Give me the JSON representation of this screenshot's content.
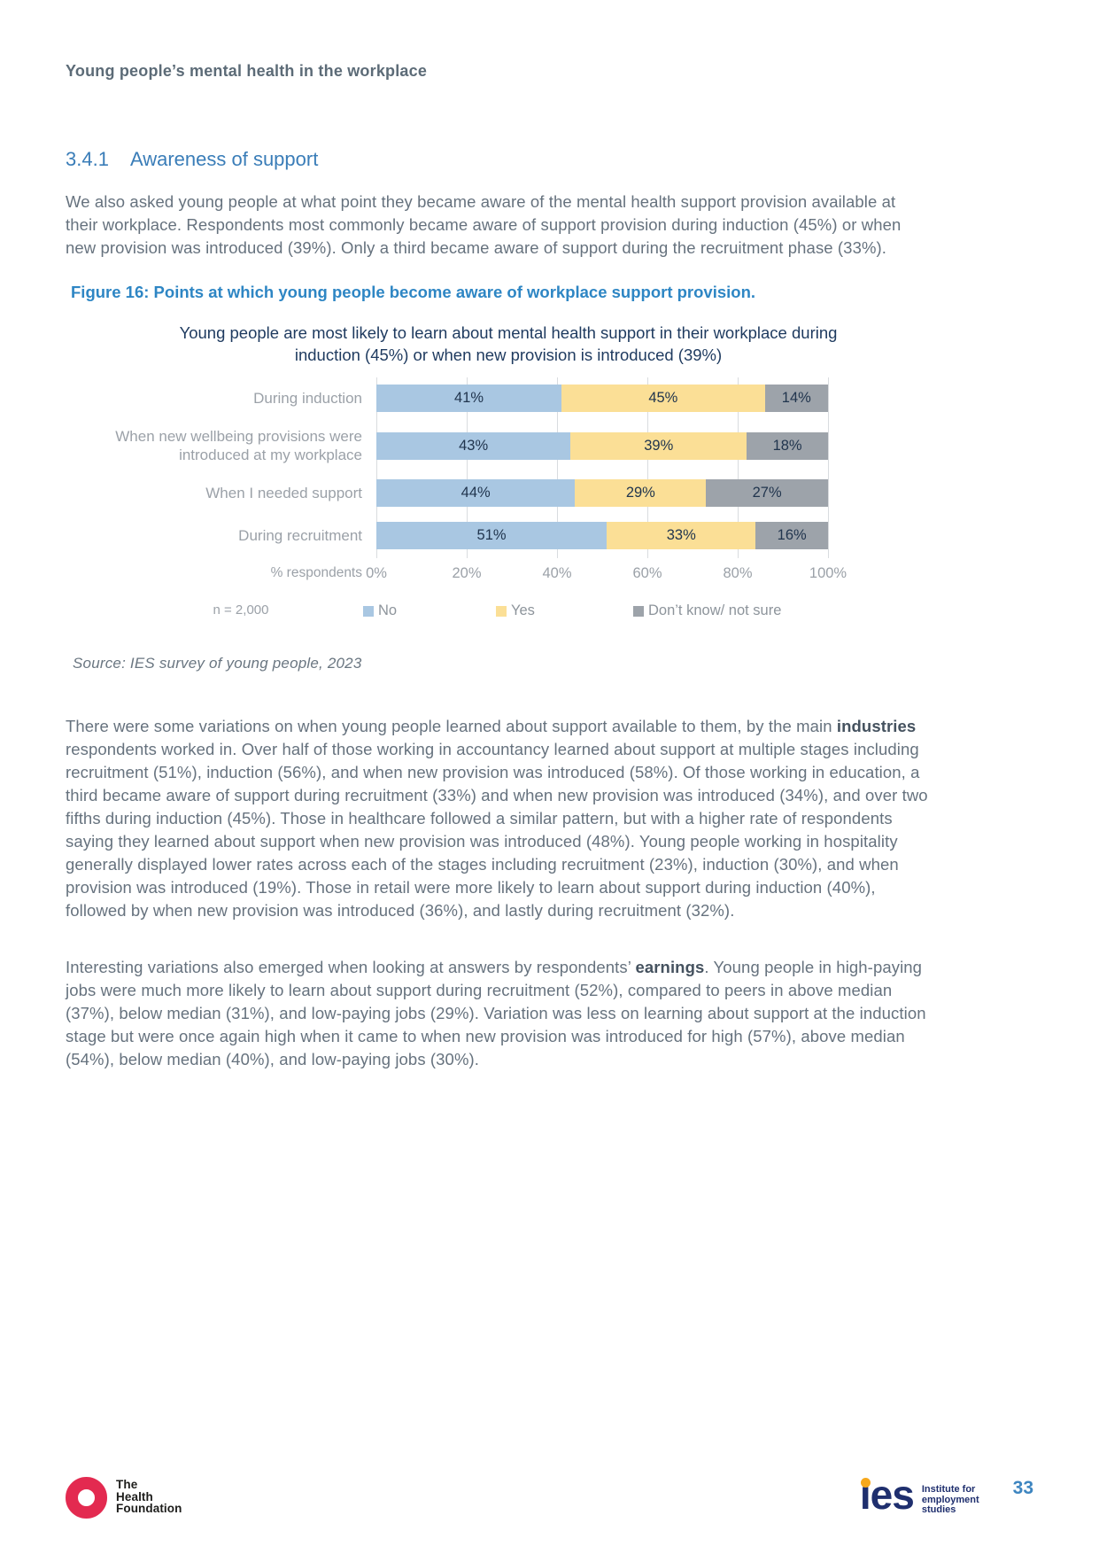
{
  "page": {
    "running_header": "Young people’s mental health in the workplace",
    "page_number": "33"
  },
  "section": {
    "number": "3.4.1",
    "title": "Awareness of support"
  },
  "paragraphs": {
    "intro": "We also asked young people at what point they became aware of the mental health support provision available at their workplace. Respondents most commonly became aware of support provision during induction (45%) or when new provision was introduced (39%). Only a third became aware of support during the recruitment phase (33%).",
    "industries": {
      "pre": "There were some variations on when young people learned about support available to them, by the main ",
      "bold": "industries",
      "post": " respondents worked in. Over half of those working in accountancy learned about support at multiple stages including recruitment (51%), induction (56%), and when new provision was introduced (58%). Of those working in education, a third became aware of support during recruitment (33%) and when new provision was introduced (34%), and over two fifths during induction (45%). Those in healthcare followed a similar pattern, but with a higher rate of respondents saying they learned about support when new provision was introduced (48%). Young people working in hospitality generally displayed lower rates across each of the stages including recruitment (23%), induction (30%), and when provision was introduced (19%). Those in retail were more likely to learn about support during induction (40%), followed by when new provision was introduced (36%), and lastly during recruitment (32%)."
    },
    "earnings": {
      "pre": "Interesting variations also emerged when looking at answers by respondents’ ",
      "bold": "earnings",
      "post": ". Young people in high-paying jobs were much more likely to learn about support during recruitment (52%), compared to peers in above median (37%), below median (31%), and low-paying jobs (29%). Variation was less on learning about support at the induction stage but were once again high when it came to when new provision was introduced for high (57%), above median (54%), below median (40%), and low-paying jobs (30%)."
    }
  },
  "figure": {
    "caption": "Figure 16: Points at which young people become aware of workplace support provision.",
    "n_label": "n = 2,000",
    "source": "Source: IES survey of young people, 2023"
  },
  "chart_data": {
    "type": "bar",
    "orientation": "horizontal",
    "stacked": true,
    "title": "Young people are most likely to learn about mental health support in their workplace during induction (45%) or when new provision is introduced (39%)",
    "categories": [
      "During induction",
      "When new wellbeing provisions were introduced at my workplace",
      "When I needed support",
      "During recruitment"
    ],
    "series": [
      {
        "name": "No",
        "color": "#A9C7E2",
        "values": [
          41,
          43,
          44,
          51
        ]
      },
      {
        "name": "Yes",
        "color": "#FBDF96",
        "values": [
          45,
          39,
          29,
          33
        ]
      },
      {
        "name": "Don’t know/ not sure",
        "color": "#9DA3AA",
        "values": [
          14,
          18,
          27,
          16
        ]
      }
    ],
    "xlabel": "% respondents",
    "x_ticks": [
      "0%",
      "20%",
      "40%",
      "60%",
      "80%",
      "100%"
    ],
    "xlim": [
      0,
      100
    ],
    "grid": true,
    "legend_position": "bottom",
    "value_label_color": "#21354E"
  },
  "footer": {
    "health_foundation_logo": {
      "lines": [
        "The",
        "Health",
        "Foundation"
      ],
      "ring_color": "#E32A50"
    },
    "ies_logo": {
      "text": "ies",
      "tagline": [
        "Institute for",
        "employment",
        "studies"
      ],
      "navy": "#1F2F6E",
      "dot_color": "#F7A81B"
    }
  }
}
